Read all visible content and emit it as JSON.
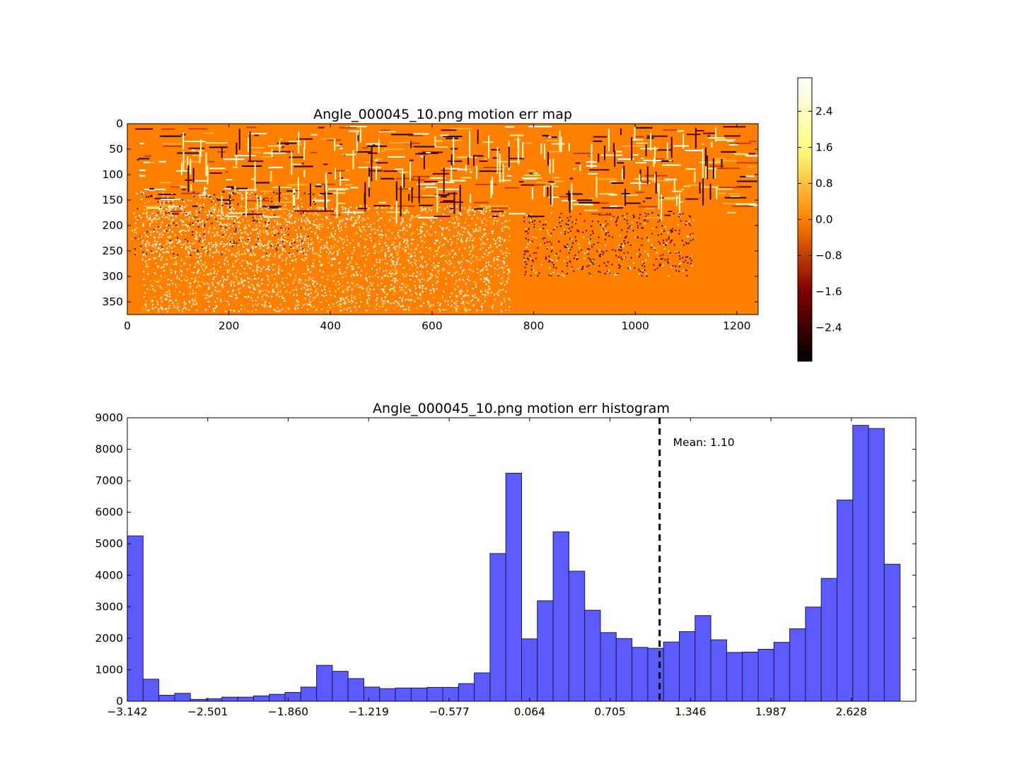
{
  "chart_data": [
    {
      "type": "heatmap",
      "title": "Angle_000045_10.png motion err map",
      "xlim": [
        0,
        1242
      ],
      "ylim": [
        375,
        0
      ],
      "xticks": [
        "0",
        "200",
        "400",
        "600",
        "800",
        "1000",
        "1200"
      ],
      "yticks": [
        "0",
        "50",
        "100",
        "150",
        "200",
        "250",
        "300",
        "350"
      ],
      "colormap": "afmhot",
      "colorbar": {
        "range": [
          -3.142,
          3.142
        ],
        "ticks": [
          "−2.4",
          "−1.6",
          "−0.8",
          "0.0",
          "0.8",
          "1.6",
          "2.4"
        ],
        "tick_values": [
          -2.4,
          -1.6,
          -0.8,
          0.0,
          0.8,
          1.6,
          2.4
        ]
      },
      "background_color": "#ff8000"
    },
    {
      "type": "bar",
      "title": "Angle_000045_10.png motion err histogram",
      "xlim": [
        -3.142,
        3.142
      ],
      "ylim": [
        0,
        9000
      ],
      "xticks": [
        "−3.142",
        "−2.501",
        "−1.860",
        "−1.219",
        "−0.577",
        "0.064",
        "0.705",
        "1.346",
        "1.987",
        "2.628"
      ],
      "xtick_values": [
        -3.142,
        -2.501,
        -1.86,
        -1.219,
        -0.577,
        0.064,
        0.705,
        1.346,
        1.987,
        2.628
      ],
      "yticks": [
        "0",
        "1000",
        "2000",
        "3000",
        "4000",
        "5000",
        "6000",
        "7000",
        "8000",
        "9000"
      ],
      "bin_edges_range": [
        -3.142,
        3.142
      ],
      "bins": 50,
      "values": [
        5250,
        700,
        190,
        250,
        60,
        80,
        130,
        130,
        170,
        220,
        280,
        450,
        1140,
        950,
        720,
        450,
        400,
        420,
        420,
        440,
        440,
        560,
        900,
        4690,
        7240,
        1980,
        3190,
        5380,
        4130,
        2890,
        2180,
        1990,
        1710,
        1680,
        1880,
        2210,
        2720,
        1950,
        1550,
        1560,
        1650,
        1870,
        2300,
        2990,
        3900,
        6390,
        8760,
        8660,
        4350
      ],
      "mean": 1.1,
      "mean_label": "Mean: 1.10",
      "bar_color": "#5b5bff",
      "bar_edge": "#1a1a4d"
    }
  ]
}
